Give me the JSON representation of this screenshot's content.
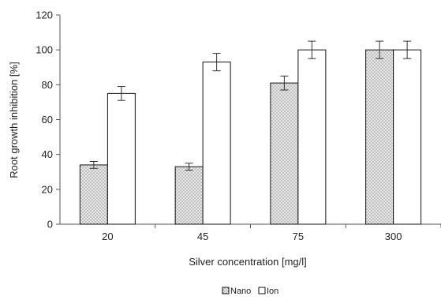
{
  "chart_data": {
    "type": "bar",
    "categories": [
      "20",
      "45",
      "75",
      "300"
    ],
    "series": [
      {
        "name": "Nano",
        "values": [
          34,
          33,
          81,
          100
        ],
        "errors": [
          2,
          2,
          4,
          5
        ],
        "color": "#d9d9d9",
        "pattern": "dotted"
      },
      {
        "name": "Ion",
        "values": [
          75,
          93,
          100,
          100
        ],
        "errors": [
          4,
          5,
          5,
          5
        ],
        "color": "#ffffff",
        "pattern": "none"
      }
    ],
    "title": "",
    "xlabel": "Silver concentration [mg/l]",
    "ylabel": "Root growth inhibition [%]",
    "ylim": [
      0,
      120
    ],
    "yticks": [
      "0",
      "20",
      "40",
      "60",
      "80",
      "100",
      "120"
    ],
    "grid": false,
    "legend_position": "bottom-center"
  }
}
